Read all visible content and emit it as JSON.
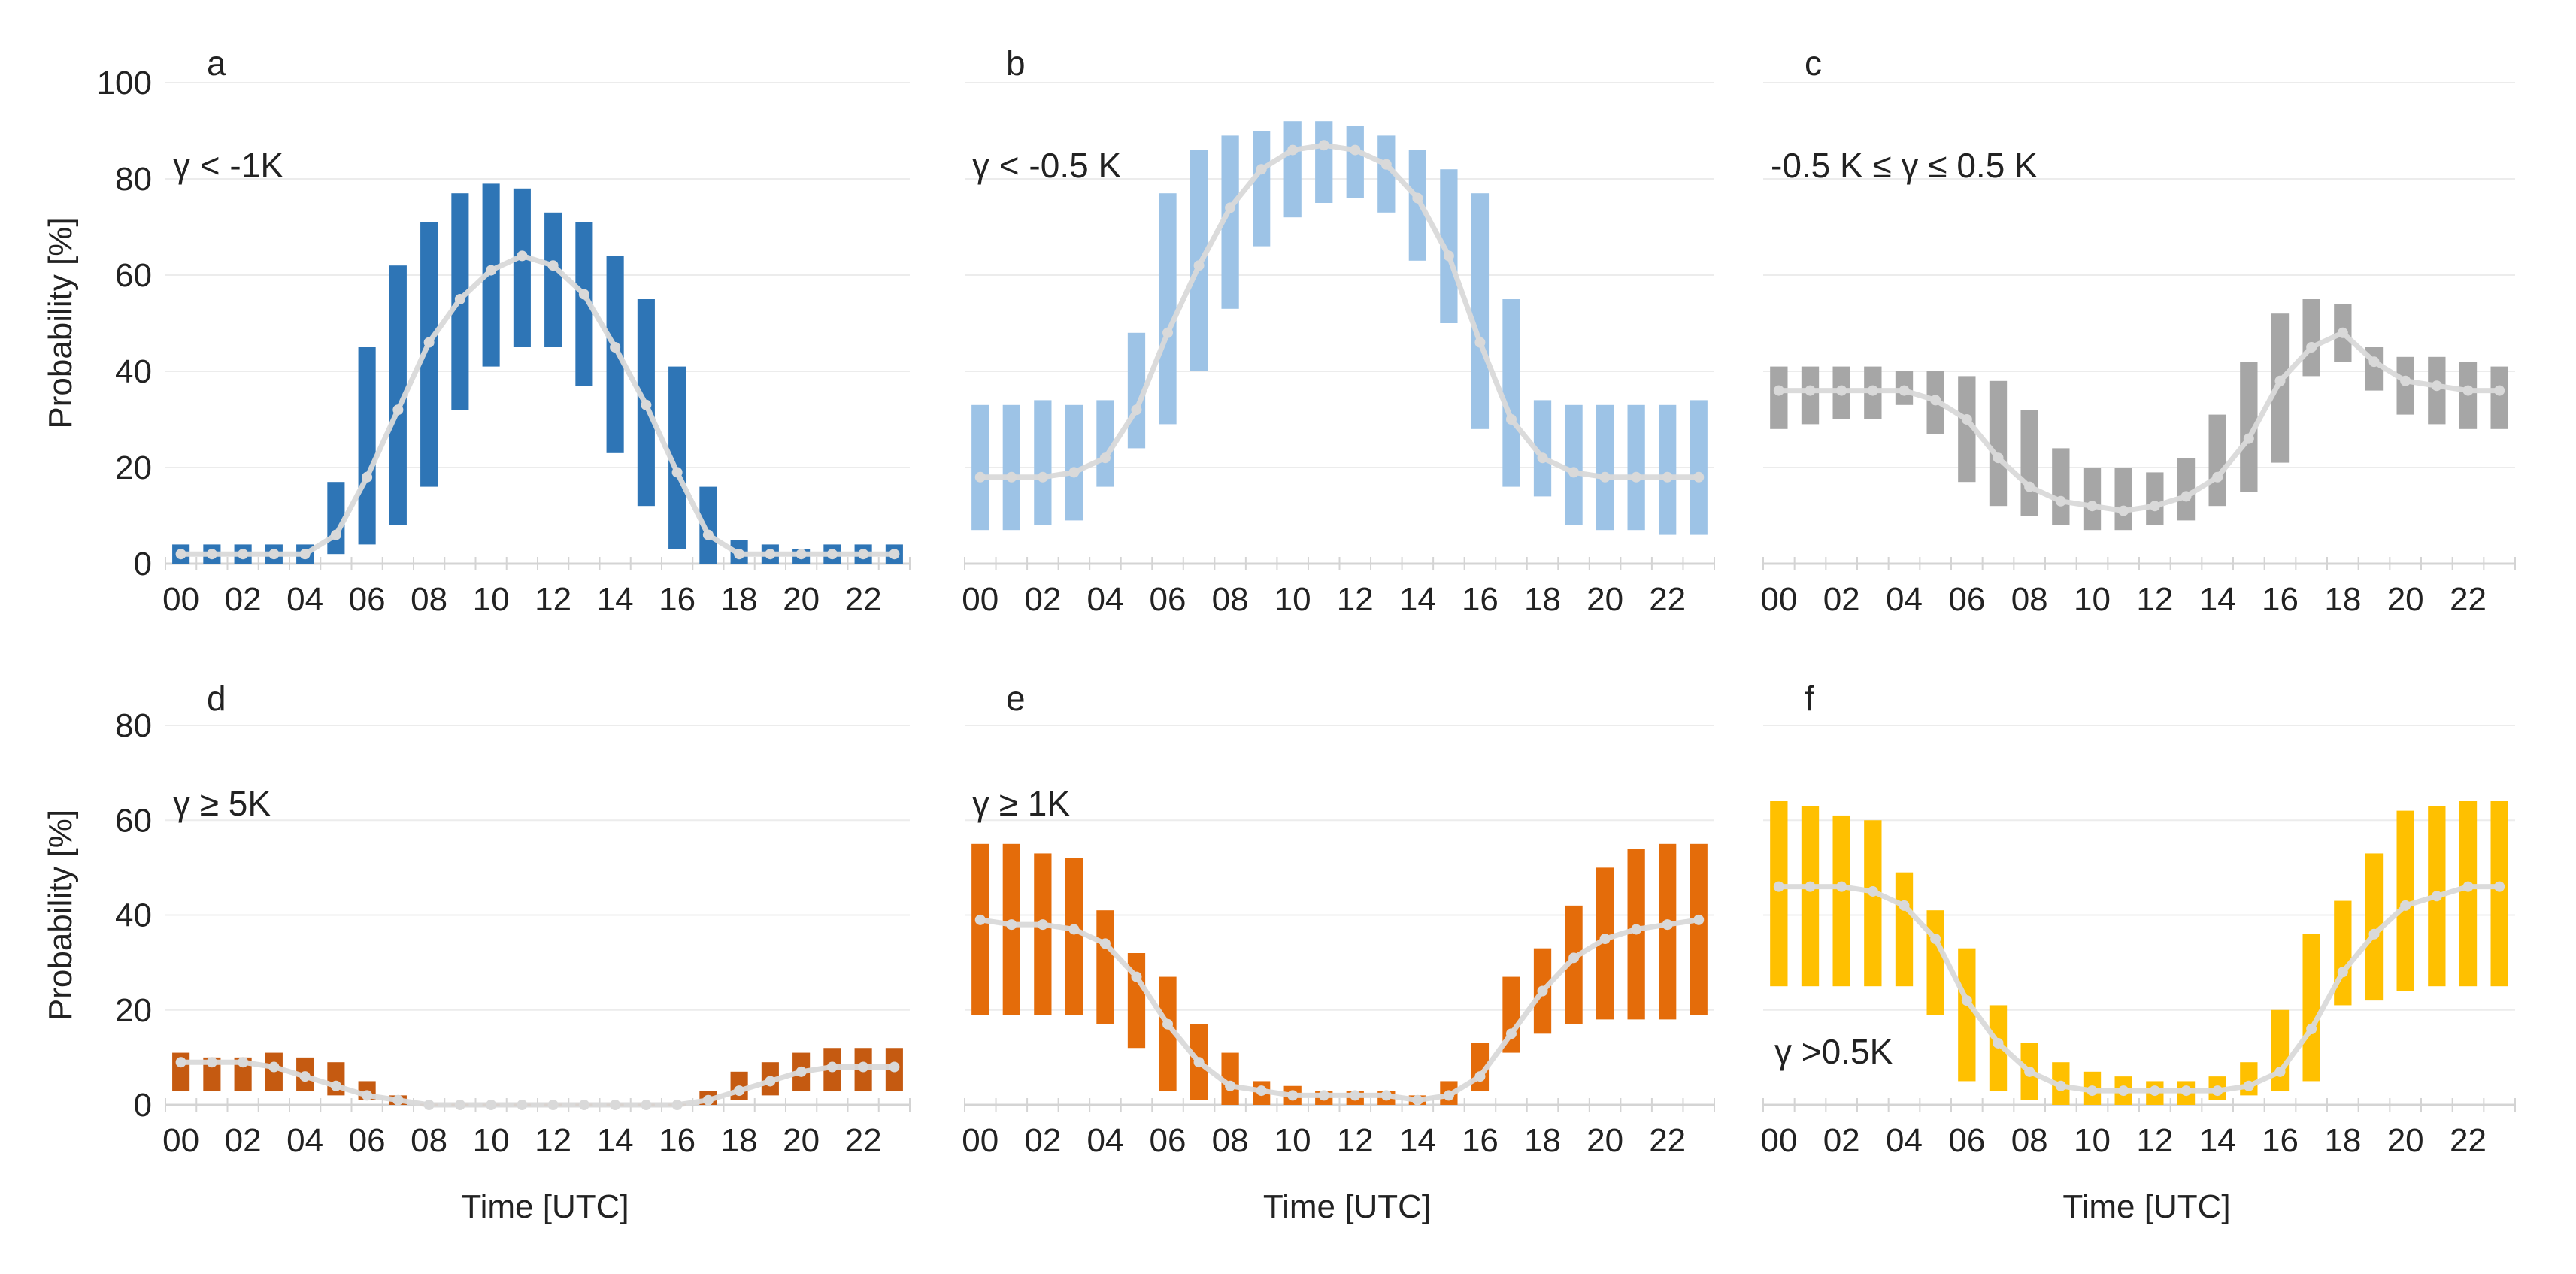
{
  "chart_data": [
    {
      "type": "bar",
      "panel_label": "a",
      "condition_label": "γ < -1K",
      "color": "#2e75b6",
      "ylabel": "Probability [%]",
      "xlabel": "",
      "ylim": [
        0,
        100
      ],
      "yticks": [
        "0",
        "20",
        "40",
        "60",
        "80",
        "100"
      ],
      "x_tick_labels": [
        "00",
        "02",
        "04",
        "06",
        "08",
        "10",
        "12",
        "14",
        "16",
        "18",
        "20",
        "22"
      ],
      "hours": [
        0,
        1,
        2,
        3,
        4,
        5,
        6,
        7,
        8,
        9,
        10,
        11,
        12,
        13,
        14,
        15,
        16,
        17,
        18,
        19,
        20,
        21,
        22,
        23
      ],
      "low": [
        0,
        0,
        0,
        0,
        0,
        2,
        4,
        8,
        16,
        32,
        41,
        45,
        45,
        37,
        23,
        12,
        3,
        0,
        0,
        0,
        0,
        0,
        0,
        0
      ],
      "high": [
        4,
        4,
        4,
        4,
        4,
        17,
        45,
        62,
        71,
        77,
        79,
        78,
        73,
        71,
        64,
        55,
        41,
        16,
        5,
        4,
        3,
        4,
        4,
        4
      ],
      "mean": [
        2,
        2,
        2,
        2,
        2,
        6,
        18,
        32,
        46,
        55,
        61,
        64,
        62,
        56,
        45,
        33,
        19,
        6,
        2,
        2,
        2,
        2,
        2,
        2
      ]
    },
    {
      "type": "bar",
      "panel_label": "b",
      "condition_label": "γ < -0.5 K",
      "color": "#9dc3e6",
      "ylabel": "",
      "xlabel": "",
      "ylim": [
        0,
        100
      ],
      "yticks": [],
      "x_tick_labels": [
        "00",
        "02",
        "04",
        "06",
        "08",
        "10",
        "12",
        "14",
        "16",
        "18",
        "20",
        "22"
      ],
      "hours": [
        0,
        1,
        2,
        3,
        4,
        5,
        6,
        7,
        8,
        9,
        10,
        11,
        12,
        13,
        14,
        15,
        16,
        17,
        18,
        19,
        20,
        21,
        22,
        23
      ],
      "low": [
        7,
        7,
        8,
        9,
        16,
        24,
        29,
        40,
        53,
        66,
        72,
        75,
        76,
        73,
        63,
        50,
        28,
        16,
        14,
        8,
        7,
        7,
        6,
        6
      ],
      "high": [
        33,
        33,
        34,
        33,
        34,
        48,
        77,
        86,
        89,
        90,
        92,
        92,
        91,
        89,
        86,
        82,
        77,
        55,
        34,
        33,
        33,
        33,
        33,
        34
      ],
      "mean": [
        18,
        18,
        18,
        19,
        22,
        32,
        48,
        62,
        74,
        82,
        86,
        87,
        86,
        83,
        76,
        64,
        46,
        30,
        22,
        19,
        18,
        18,
        18,
        18
      ]
    },
    {
      "type": "bar",
      "panel_label": "c",
      "condition_label": "-0.5 K ≤ γ ≤ 0.5 K",
      "color": "#a6a6a6",
      "ylabel": "",
      "xlabel": "",
      "ylim": [
        0,
        100
      ],
      "yticks": [],
      "x_tick_labels": [
        "00",
        "02",
        "04",
        "06",
        "08",
        "10",
        "12",
        "14",
        "16",
        "18",
        "20",
        "22"
      ],
      "hours": [
        0,
        1,
        2,
        3,
        4,
        5,
        6,
        7,
        8,
        9,
        10,
        11,
        12,
        13,
        14,
        15,
        16,
        17,
        18,
        19,
        20,
        21,
        22,
        23
      ],
      "low": [
        28,
        29,
        30,
        30,
        33,
        27,
        17,
        12,
        10,
        8,
        7,
        7,
        8,
        9,
        12,
        15,
        21,
        39,
        42,
        36,
        31,
        29,
        28,
        28
      ],
      "high": [
        41,
        41,
        41,
        41,
        40,
        40,
        39,
        38,
        32,
        24,
        20,
        20,
        19,
        22,
        31,
        42,
        52,
        55,
        54,
        45,
        43,
        43,
        42,
        41
      ],
      "mean": [
        36,
        36,
        36,
        36,
        36,
        34,
        30,
        22,
        16,
        13,
        12,
        11,
        12,
        14,
        18,
        26,
        38,
        45,
        48,
        42,
        38,
        37,
        36,
        36
      ]
    },
    {
      "type": "bar",
      "panel_label": "d",
      "condition_label": "γ ≥ 5K",
      "color": "#c55a11",
      "ylabel": "Probability [%]",
      "xlabel": "Time [UTC]",
      "ylim": [
        0,
        80
      ],
      "yticks": [
        "0",
        "20",
        "40",
        "60",
        "80"
      ],
      "x_tick_labels": [
        "00",
        "02",
        "04",
        "06",
        "08",
        "10",
        "12",
        "14",
        "16",
        "18",
        "20",
        "22"
      ],
      "hours": [
        0,
        1,
        2,
        3,
        4,
        5,
        6,
        7,
        8,
        9,
        10,
        11,
        12,
        13,
        14,
        15,
        16,
        17,
        18,
        19,
        20,
        21,
        22,
        23
      ],
      "low": [
        3,
        3,
        3,
        3,
        3,
        2,
        1,
        0,
        0,
        0,
        0,
        0,
        0,
        0,
        0,
        0,
        0,
        0,
        1,
        2,
        3,
        3,
        3,
        3
      ],
      "high": [
        11,
        10,
        10,
        11,
        10,
        9,
        5,
        2,
        0,
        0,
        0,
        0,
        0,
        0,
        0,
        0,
        0,
        3,
        7,
        9,
        11,
        12,
        12,
        12
      ],
      "mean": [
        9,
        9,
        9,
        8,
        6,
        4,
        2,
        1,
        0,
        0,
        0,
        0,
        0,
        0,
        0,
        0,
        0,
        1,
        3,
        5,
        7,
        8,
        8,
        8
      ]
    },
    {
      "type": "bar",
      "panel_label": "e",
      "condition_label": "γ ≥ 1K",
      "color": "#e46c0a",
      "ylabel": "",
      "xlabel": "Time [UTC]",
      "ylim": [
        0,
        80
      ],
      "yticks": [],
      "x_tick_labels": [
        "00",
        "02",
        "04",
        "06",
        "08",
        "10",
        "12",
        "14",
        "16",
        "18",
        "20",
        "22"
      ],
      "hours": [
        0,
        1,
        2,
        3,
        4,
        5,
        6,
        7,
        8,
        9,
        10,
        11,
        12,
        13,
        14,
        15,
        16,
        17,
        18,
        19,
        20,
        21,
        22,
        23
      ],
      "low": [
        19,
        19,
        19,
        19,
        17,
        12,
        3,
        1,
        0,
        0,
        0,
        0,
        0,
        0,
        0,
        0,
        3,
        11,
        15,
        17,
        18,
        18,
        18,
        19
      ],
      "high": [
        55,
        55,
        53,
        52,
        41,
        32,
        27,
        17,
        11,
        5,
        4,
        3,
        3,
        3,
        2,
        5,
        13,
        27,
        33,
        42,
        50,
        54,
        55,
        55
      ],
      "mean": [
        39,
        38,
        38,
        37,
        34,
        27,
        17,
        9,
        4,
        3,
        2,
        2,
        2,
        2,
        1,
        2,
        6,
        15,
        24,
        31,
        35,
        37,
        38,
        39
      ]
    },
    {
      "type": "bar",
      "panel_label": "f",
      "condition_label": "γ >0.5K",
      "color": "#ffc000",
      "ylabel": "",
      "xlabel": "Time [UTC]",
      "ylim": [
        0,
        80
      ],
      "yticks": [],
      "x_tick_labels": [
        "00",
        "02",
        "04",
        "06",
        "08",
        "10",
        "12",
        "14",
        "16",
        "18",
        "20",
        "22"
      ],
      "hours": [
        0,
        1,
        2,
        3,
        4,
        5,
        6,
        7,
        8,
        9,
        10,
        11,
        12,
        13,
        14,
        15,
        16,
        17,
        18,
        19,
        20,
        21,
        22,
        23
      ],
      "low": [
        25,
        25,
        25,
        25,
        25,
        19,
        5,
        3,
        1,
        0,
        0,
        0,
        0,
        0,
        1,
        2,
        3,
        5,
        21,
        22,
        24,
        25,
        25,
        25
      ],
      "high": [
        64,
        63,
        61,
        60,
        49,
        41,
        33,
        21,
        13,
        9,
        7,
        6,
        5,
        5,
        6,
        9,
        20,
        36,
        43,
        53,
        62,
        63,
        64,
        64
      ],
      "mean": [
        46,
        46,
        46,
        45,
        42,
        35,
        22,
        13,
        7,
        4,
        3,
        3,
        3,
        3,
        3,
        4,
        7,
        16,
        28,
        36,
        42,
        44,
        46,
        46
      ]
    }
  ]
}
